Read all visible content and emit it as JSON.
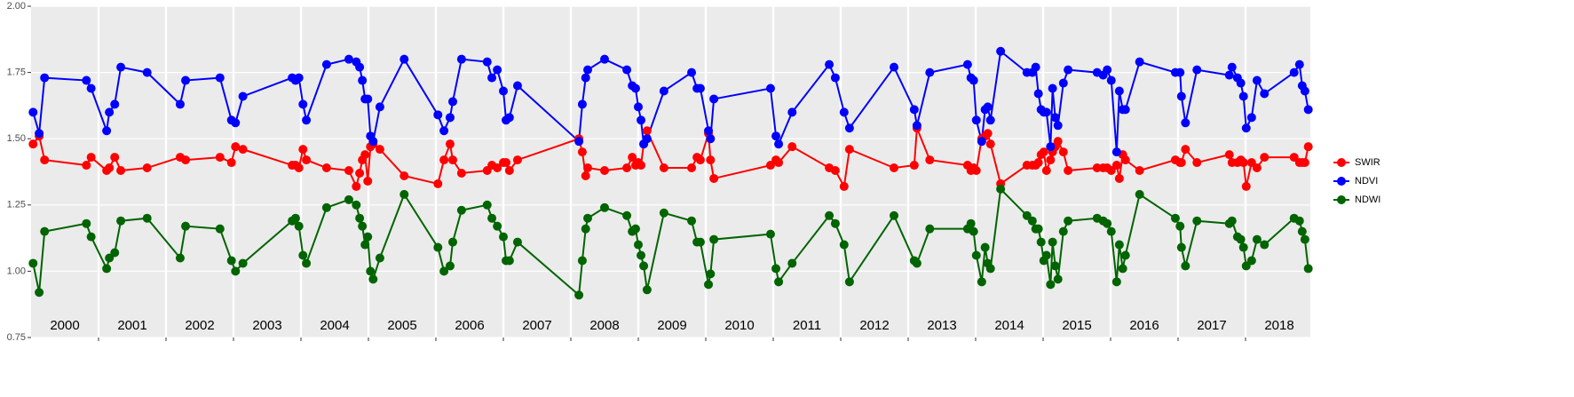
{
  "chart_data": {
    "type": "line",
    "x": [
      2000.03,
      2000.12,
      2000.2,
      2000.82,
      2000.89,
      2001.12,
      2001.16,
      2001.24,
      2001.33,
      2001.72,
      2002.21,
      2002.29,
      2002.8,
      2002.97,
      2003.03,
      2003.14,
      2003.87,
      2003.92,
      2003.97,
      2004.03,
      2004.08,
      2004.38,
      2004.71,
      2004.82,
      2004.87,
      2004.91,
      2004.95,
      2004.99,
      2005.03,
      2005.07,
      2005.17,
      2005.53,
      2006.03,
      2006.12,
      2006.21,
      2006.25,
      2006.38,
      2006.76,
      2006.83,
      2006.91,
      2007.0,
      2007.04,
      2007.09,
      2007.21,
      2008.12,
      2008.17,
      2008.22,
      2008.25,
      2008.5,
      2008.83,
      2008.91,
      2008.96,
      2009.0,
      2009.04,
      2009.08,
      2009.13,
      2009.38,
      2009.79,
      2009.87,
      2009.92,
      2010.04,
      2010.07,
      2010.12,
      2010.96,
      2011.04,
      2011.08,
      2011.28,
      2011.83,
      2011.92,
      2012.05,
      2012.13,
      2012.79,
      2013.09,
      2013.13,
      2013.32,
      2013.88,
      2013.93,
      2013.97,
      2014.01,
      2014.09,
      2014.14,
      2014.18,
      2014.22,
      2014.37,
      2014.76,
      2014.84,
      2014.89,
      2014.93,
      2014.97,
      2015.01,
      2015.05,
      2015.11,
      2015.14,
      2015.18,
      2015.22,
      2015.3,
      2015.37,
      2015.8,
      2015.89,
      2015.95,
      2016.01,
      2016.09,
      2016.13,
      2016.18,
      2016.22,
      2016.43,
      2016.96,
      2017.03,
      2017.05,
      2017.11,
      2017.28,
      2017.76,
      2017.8,
      2017.88,
      2017.93,
      2017.97,
      2018.01,
      2018.09,
      2018.17,
      2018.28,
      2018.72,
      2018.8,
      2018.84,
      2018.88,
      2018.93
    ],
    "series": [
      {
        "name": "SWIR",
        "color": "#ff0000",
        "values": [
          1.48,
          1.51,
          1.42,
          1.4,
          1.43,
          1.38,
          1.39,
          1.43,
          1.38,
          1.39,
          1.43,
          1.42,
          1.43,
          1.41,
          1.47,
          1.46,
          1.4,
          1.4,
          1.39,
          1.46,
          1.42,
          1.39,
          1.38,
          1.32,
          1.37,
          1.42,
          1.44,
          1.34,
          1.47,
          1.48,
          1.46,
          1.36,
          1.33,
          1.42,
          1.48,
          1.42,
          1.37,
          1.38,
          1.4,
          1.39,
          1.41,
          1.41,
          1.38,
          1.42,
          1.5,
          1.45,
          1.36,
          1.39,
          1.38,
          1.39,
          1.43,
          1.4,
          1.41,
          1.4,
          1.48,
          1.53,
          1.39,
          1.39,
          1.43,
          1.42,
          1.52,
          1.42,
          1.35,
          1.4,
          1.42,
          1.41,
          1.47,
          1.39,
          1.38,
          1.32,
          1.46,
          1.39,
          1.4,
          1.54,
          1.42,
          1.4,
          1.38,
          1.39,
          1.38,
          1.5,
          1.51,
          1.52,
          1.48,
          1.33,
          1.4,
          1.4,
          1.4,
          1.41,
          1.44,
          1.45,
          1.38,
          1.42,
          1.45,
          1.47,
          1.49,
          1.45,
          1.38,
          1.39,
          1.39,
          1.39,
          1.38,
          1.4,
          1.35,
          1.44,
          1.42,
          1.38,
          1.42,
          1.41,
          1.41,
          1.46,
          1.41,
          1.44,
          1.41,
          1.41,
          1.42,
          1.41,
          1.32,
          1.41,
          1.39,
          1.43,
          1.43,
          1.41,
          1.41,
          1.41,
          1.47
        ]
      },
      {
        "name": "NDVI",
        "color": "#0000ff",
        "values": [
          1.6,
          1.52,
          1.73,
          1.72,
          1.69,
          1.53,
          1.6,
          1.63,
          1.77,
          1.75,
          1.63,
          1.72,
          1.73,
          1.57,
          1.56,
          1.66,
          1.73,
          1.72,
          1.73,
          1.63,
          1.57,
          1.78,
          1.8,
          1.79,
          1.77,
          1.72,
          1.65,
          1.65,
          1.51,
          1.49,
          1.62,
          1.8,
          1.59,
          1.53,
          1.58,
          1.64,
          1.8,
          1.79,
          1.73,
          1.76,
          1.68,
          1.57,
          1.58,
          1.7,
          1.49,
          1.63,
          1.73,
          1.76,
          1.8,
          1.76,
          1.7,
          1.69,
          1.62,
          1.57,
          1.48,
          1.5,
          1.68,
          1.75,
          1.69,
          1.69,
          1.53,
          1.5,
          1.65,
          1.69,
          1.51,
          1.48,
          1.6,
          1.78,
          1.73,
          1.6,
          1.54,
          1.77,
          1.61,
          1.55,
          1.75,
          1.78,
          1.73,
          1.72,
          1.57,
          1.49,
          1.61,
          1.62,
          1.57,
          1.83,
          1.75,
          1.75,
          1.77,
          1.67,
          1.61,
          1.6,
          1.6,
          1.47,
          1.69,
          1.58,
          1.55,
          1.71,
          1.76,
          1.75,
          1.74,
          1.76,
          1.72,
          1.45,
          1.68,
          1.61,
          1.61,
          1.79,
          1.75,
          1.75,
          1.66,
          1.56,
          1.76,
          1.74,
          1.77,
          1.73,
          1.71,
          1.66,
          1.54,
          1.58,
          1.72,
          1.67,
          1.75,
          1.78,
          1.7,
          1.68,
          1.61
        ]
      },
      {
        "name": "NDWI",
        "color": "#006400",
        "values": [
          1.03,
          0.92,
          1.15,
          1.18,
          1.13,
          1.01,
          1.05,
          1.07,
          1.19,
          1.2,
          1.05,
          1.17,
          1.16,
          1.04,
          1.0,
          1.03,
          1.19,
          1.2,
          1.17,
          1.06,
          1.03,
          1.24,
          1.27,
          1.25,
          1.2,
          1.17,
          1.1,
          1.13,
          1.0,
          0.97,
          1.05,
          1.29,
          1.09,
          1.0,
          1.02,
          1.11,
          1.23,
          1.25,
          1.2,
          1.17,
          1.13,
          1.04,
          1.04,
          1.11,
          0.91,
          1.04,
          1.16,
          1.2,
          1.24,
          1.21,
          1.15,
          1.16,
          1.1,
          1.06,
          1.02,
          0.93,
          1.22,
          1.19,
          1.11,
          1.11,
          0.95,
          0.99,
          1.12,
          1.14,
          1.01,
          0.96,
          1.03,
          1.21,
          1.18,
          1.1,
          0.96,
          1.21,
          1.04,
          1.03,
          1.16,
          1.16,
          1.18,
          1.15,
          1.06,
          0.96,
          1.09,
          1.03,
          1.01,
          1.31,
          1.21,
          1.19,
          1.16,
          1.16,
          1.11,
          1.04,
          1.06,
          0.95,
          1.11,
          1.02,
          0.97,
          1.15,
          1.19,
          1.2,
          1.19,
          1.18,
          1.15,
          0.96,
          1.1,
          1.01,
          1.06,
          1.29,
          1.2,
          1.17,
          1.09,
          1.02,
          1.19,
          1.18,
          1.19,
          1.13,
          1.12,
          1.09,
          1.02,
          1.04,
          1.12,
          1.1,
          1.2,
          1.19,
          1.15,
          1.12,
          1.01
        ]
      }
    ],
    "xlim": [
      2000,
      2019
    ],
    "xticks": [
      {
        "value": 2000.5,
        "label": "2000"
      },
      {
        "value": 2001.5,
        "label": "2001"
      },
      {
        "value": 2002.5,
        "label": "2002"
      },
      {
        "value": 2003.5,
        "label": "2003"
      },
      {
        "value": 2004.5,
        "label": "2004"
      },
      {
        "value": 2005.5,
        "label": "2005"
      },
      {
        "value": 2006.5,
        "label": "2006"
      },
      {
        "value": 2007.5,
        "label": "2007"
      },
      {
        "value": 2008.5,
        "label": "2008"
      },
      {
        "value": 2009.5,
        "label": "2009"
      },
      {
        "value": 2010.5,
        "label": "2010"
      },
      {
        "value": 2011.5,
        "label": "2011"
      },
      {
        "value": 2012.5,
        "label": "2012"
      },
      {
        "value": 2013.5,
        "label": "2013"
      },
      {
        "value": 2014.5,
        "label": "2014"
      },
      {
        "value": 2015.5,
        "label": "2015"
      },
      {
        "value": 2016.5,
        "label": "2016"
      },
      {
        "value": 2017.5,
        "label": "2017"
      },
      {
        "value": 2018.5,
        "label": "2018"
      }
    ],
    "xgrid": [
      2001,
      2002,
      2003,
      2004,
      2005,
      2006,
      2007,
      2008,
      2009,
      2010,
      2011,
      2012,
      2013,
      2014,
      2015,
      2016,
      2017,
      2018
    ],
    "ylim": [
      0.75,
      2.0
    ],
    "yticks": [
      0.75,
      {
        "value": 1.0,
        "label": "1.00"
      },
      1.25,
      {
        "value": 1.5,
        "label": "1.50"
      },
      1.75,
      {
        "value": 2.0,
        "label": "2.00"
      }
    ],
    "grid": true,
    "legend": "right"
  }
}
